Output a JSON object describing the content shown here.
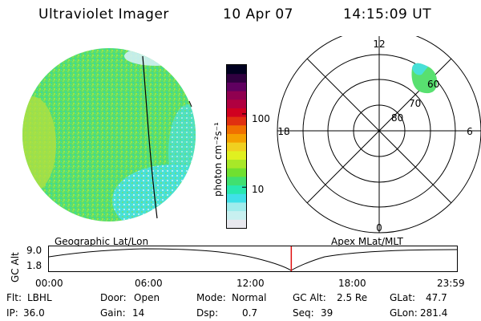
{
  "header": {
    "instrument": "Ultraviolet Imager",
    "date": "10 Apr 07",
    "time": "14:15:09 UT"
  },
  "colorbar": {
    "unit_label": "photon cm⁻²s⁻¹",
    "ticks": [
      "100",
      "10"
    ],
    "colors": [
      "#e8e8ee",
      "#c8f0f0",
      "#a0ecec",
      "#40e0e8",
      "#28e8b0",
      "#40e070",
      "#70e030",
      "#a8e828",
      "#e0f020",
      "#f0d020",
      "#f4a000",
      "#f07000",
      "#e03010",
      "#d00020",
      "#b00040",
      "#900050",
      "#600060",
      "#300040",
      "#000020"
    ]
  },
  "geo_panel": {
    "label": "Geographic Lat/Lon"
  },
  "polar_panel": {
    "label": "Apex MLat/MLT",
    "mlt_labels": {
      "top": "12",
      "left": "18",
      "right": "6",
      "bottom": "0"
    },
    "lat_labels": [
      "80",
      "70",
      "60"
    ]
  },
  "timeline": {
    "axis_label": "GC Alt",
    "y_labels": [
      "9.0",
      "1.8"
    ],
    "x_labels": [
      "00:00",
      "06:00",
      "12:00",
      "18:00",
      "23:59"
    ],
    "current_time_fraction": 0.594
  },
  "info": {
    "filter_label": "Flt:",
    "filter_value": "LBHL",
    "ip_label": "IP:",
    "ip_value": "36.0",
    "door_label": "Door:",
    "door_value": "Open",
    "gain_label": "Gain:",
    "gain_value": "14",
    "mode_label": "Mode:",
    "mode_value": "Normal",
    "dsp_label": "Dsp:",
    "dsp_value": "0.7",
    "gcalt_label": "GC Alt:",
    "gcalt_value": "2.5 Re",
    "seq_label": "Seq:",
    "seq_value": "39",
    "glat_label": "GLat:",
    "glat_value": "47.7",
    "glon_label": "GLon:",
    "glon_value": "281.4"
  }
}
